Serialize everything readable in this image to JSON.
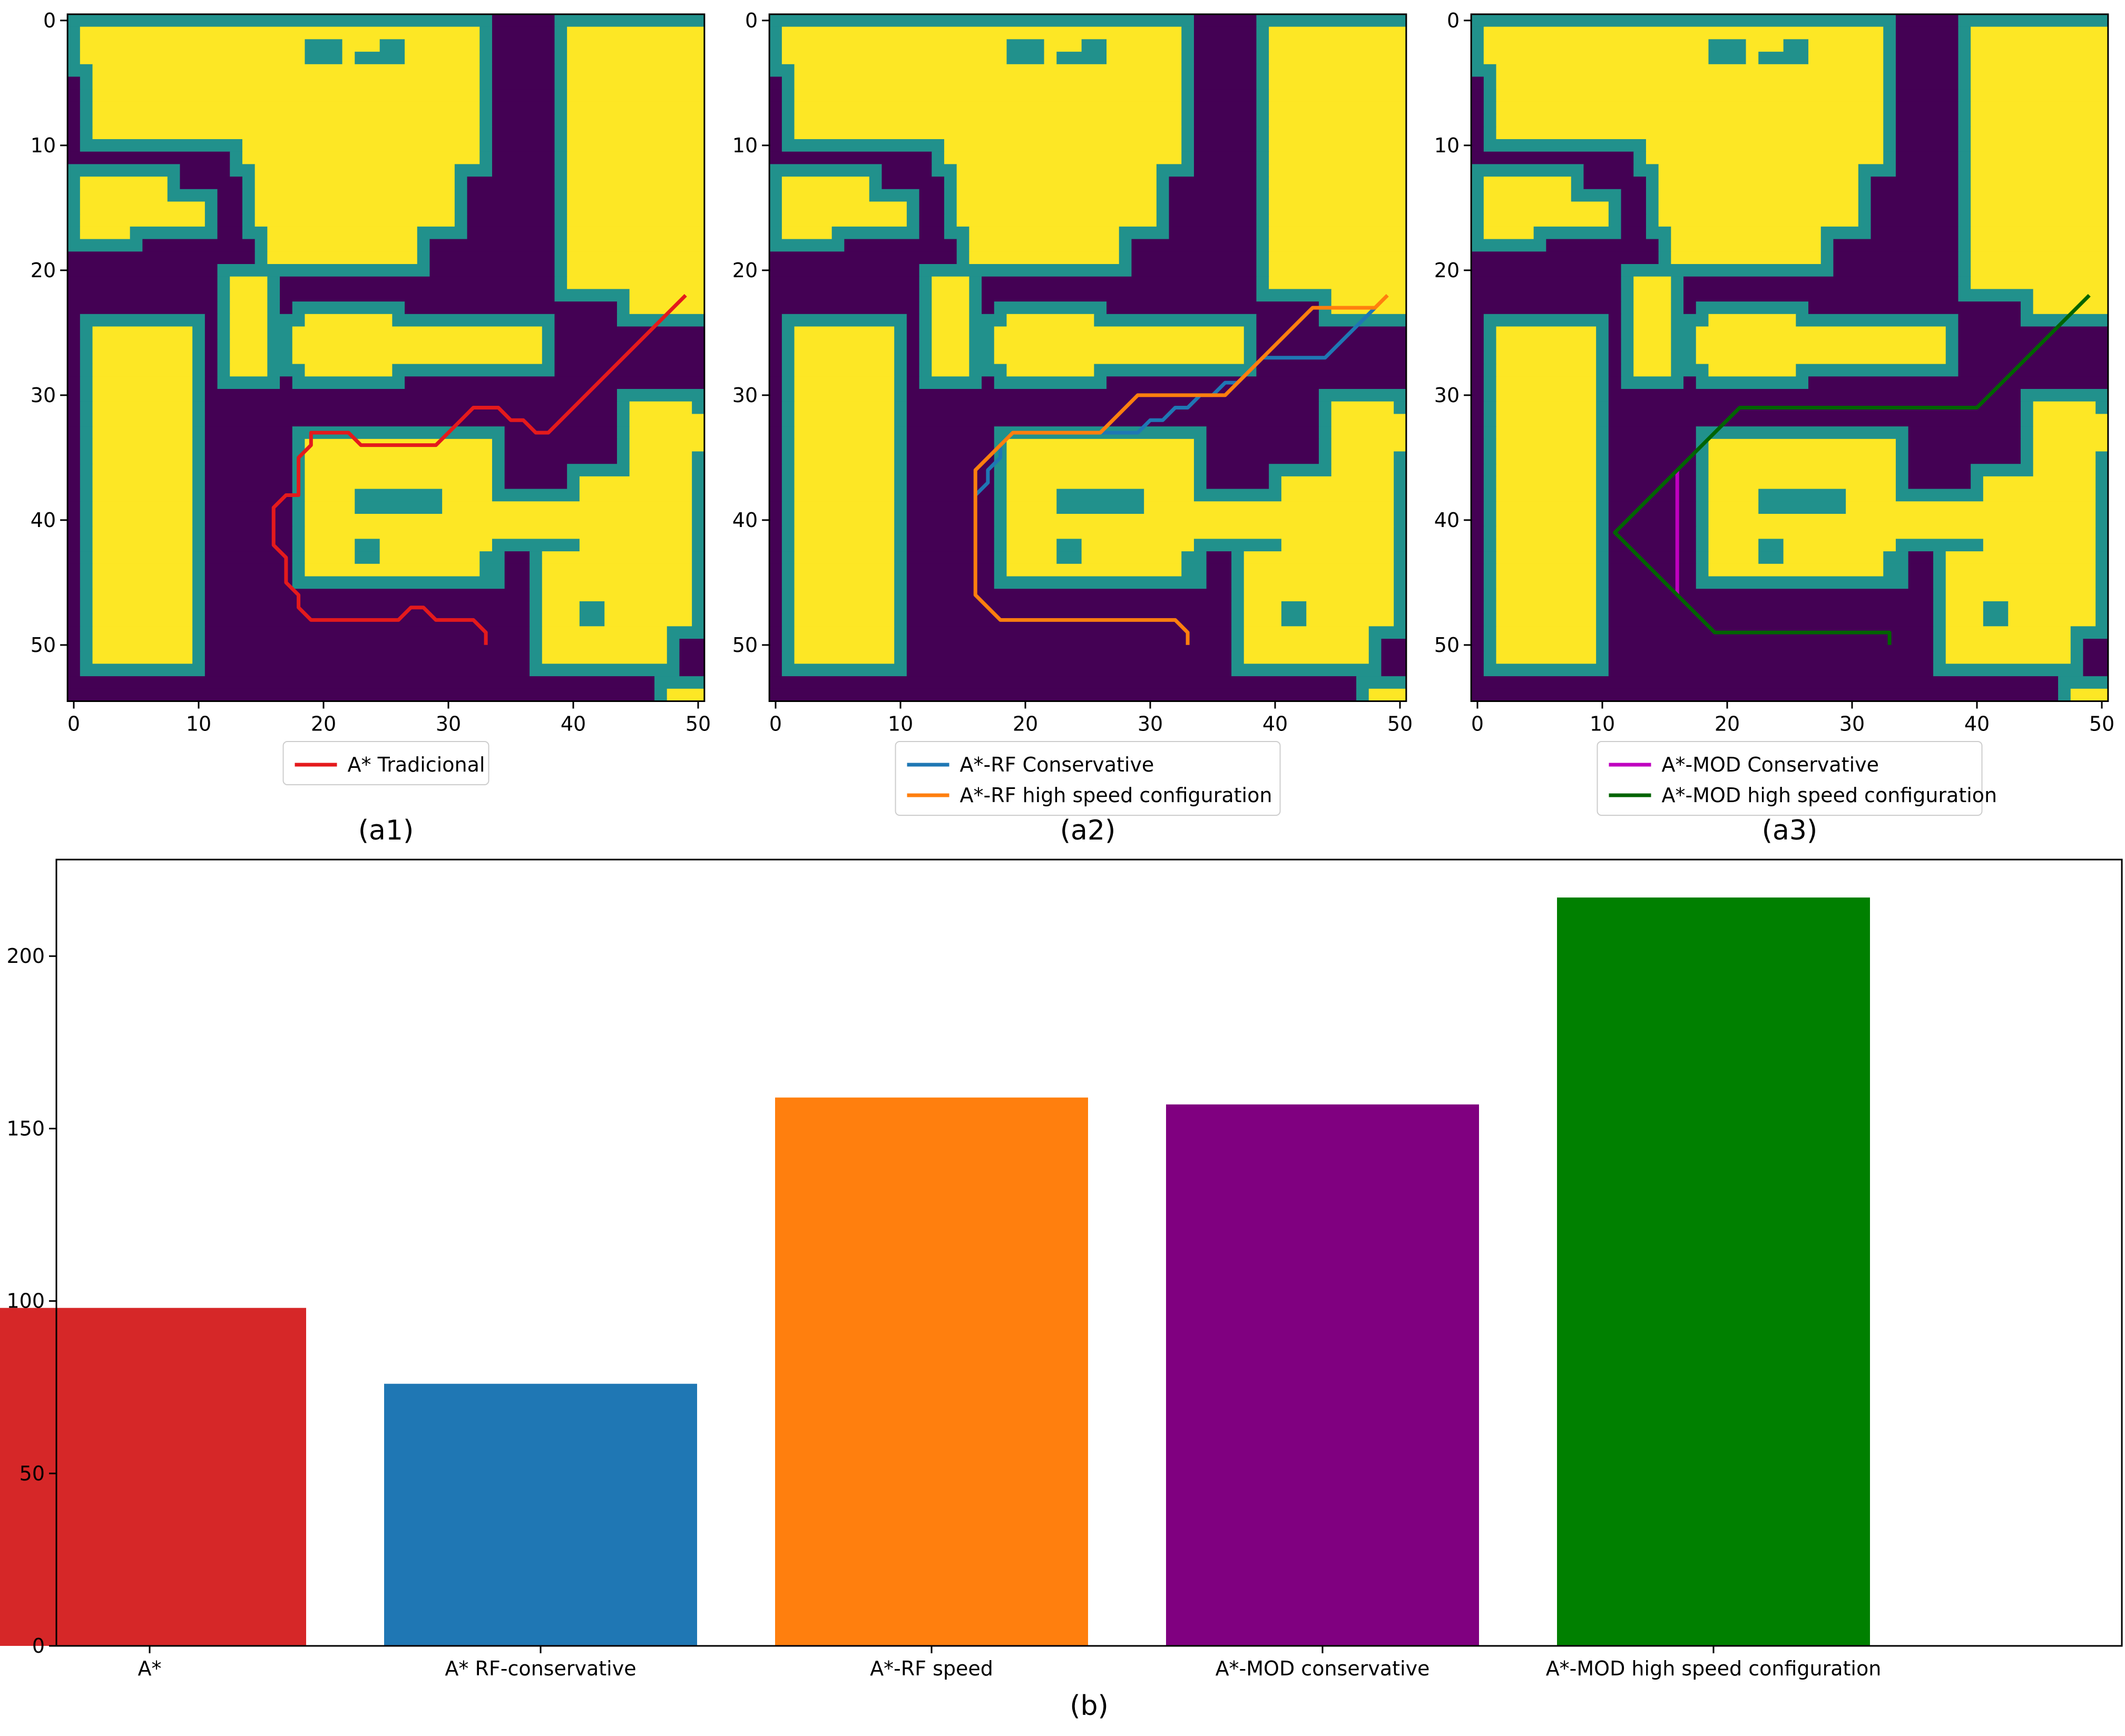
{
  "colors": {
    "free": "#440154",
    "buffer": "#21918c",
    "obstacle": "#fde725",
    "a_star": "#e41a1c",
    "rf_conservative": "#1f77b4",
    "rf_speed": "#ff7f0e",
    "mod_conservative": "#bf00bf",
    "mod_speed": "#006400"
  },
  "panels": [
    {
      "caption": "(a1)",
      "legend": [
        {
          "label": "A* Tradicional",
          "color": "#e41a1c"
        }
      ]
    },
    {
      "caption": "(a2)",
      "legend": [
        {
          "label": "A*-RF Conservative",
          "color": "#1f77b4"
        },
        {
          "label": " A*-RF high speed configuration",
          "color": "#ff7f0e"
        }
      ]
    },
    {
      "caption": "(a3)",
      "legend": [
        {
          "label": "A*-MOD Conservative",
          "color": "#bf00bf"
        },
        {
          "label": "A*-MOD high speed configuration",
          "color": "#006400"
        }
      ]
    }
  ],
  "chart_data": [
    {
      "type": "heatmap",
      "panel": "(a1)",
      "xlim": [
        0,
        50
      ],
      "ylim": [
        55,
        0
      ],
      "xticks": [
        0,
        10,
        20,
        30,
        40,
        50
      ],
      "yticks": [
        0,
        10,
        20,
        30,
        40,
        50
      ],
      "series": [
        {
          "name": "A* Tradicional",
          "color": "#e41a1c",
          "points": [
            [
              33,
              50
            ],
            [
              33,
              49
            ],
            [
              32,
              48
            ],
            [
              29,
              48
            ],
            [
              28,
              47
            ],
            [
              27,
              47
            ],
            [
              26,
              48
            ],
            [
              19,
              48
            ],
            [
              18,
              47
            ],
            [
              18,
              46
            ],
            [
              17,
              45
            ],
            [
              17,
              43
            ],
            [
              16,
              42
            ],
            [
              16,
              39
            ],
            [
              17,
              38
            ],
            [
              18,
              38
            ],
            [
              18,
              35
            ],
            [
              19,
              34
            ],
            [
              19,
              33
            ],
            [
              22,
              33
            ],
            [
              23,
              34
            ],
            [
              29,
              34
            ],
            [
              30,
              33
            ],
            [
              31,
              32
            ],
            [
              32,
              31
            ],
            [
              34,
              31
            ],
            [
              35,
              32
            ],
            [
              36,
              32
            ],
            [
              37,
              33
            ],
            [
              38,
              33
            ],
            [
              49,
              22
            ]
          ]
        }
      ]
    },
    {
      "type": "heatmap",
      "panel": "(a2)",
      "xlim": [
        0,
        50
      ],
      "ylim": [
        55,
        0
      ],
      "xticks": [
        0,
        10,
        20,
        30,
        40,
        50
      ],
      "yticks": [
        0,
        10,
        20,
        30,
        40,
        50
      ],
      "series": [
        {
          "name": "A*-RF Conservative",
          "color": "#1f77b4",
          "points": [
            [
              16,
              38
            ],
            [
              17,
              37
            ],
            [
              17,
              36
            ],
            [
              18,
              35
            ],
            [
              18,
              34
            ],
            [
              19,
              33
            ],
            [
              29,
              33
            ],
            [
              30,
              32
            ],
            [
              31,
              32
            ],
            [
              32,
              31
            ],
            [
              33,
              31
            ],
            [
              34,
              30
            ],
            [
              35,
              30
            ],
            [
              36,
              29
            ],
            [
              37,
              29
            ],
            [
              38,
              28
            ],
            [
              39,
              27
            ],
            [
              44,
              27
            ],
            [
              48,
              23
            ]
          ]
        },
        {
          "name": " A*-RF high speed configuration",
          "color": "#ff7f0e",
          "points": [
            [
              33,
              50
            ],
            [
              33,
              49
            ],
            [
              32,
              48
            ],
            [
              18,
              48
            ],
            [
              16,
              46
            ],
            [
              16,
              36
            ],
            [
              19,
              33
            ],
            [
              26,
              33
            ],
            [
              29,
              30
            ],
            [
              36,
              30
            ],
            [
              43,
              23
            ],
            [
              48,
              23
            ],
            [
              49,
              22
            ]
          ]
        }
      ]
    },
    {
      "type": "heatmap",
      "panel": "(a3)",
      "xlim": [
        0,
        50
      ],
      "ylim": [
        55,
        0
      ],
      "xticks": [
        0,
        10,
        20,
        30,
        40,
        50
      ],
      "yticks": [
        0,
        10,
        20,
        30,
        40,
        50
      ],
      "series": [
        {
          "name": "A*-MOD Conservative",
          "color": "#bf00bf",
          "points": [
            [
              16,
              46
            ],
            [
              16,
              36
            ]
          ]
        },
        {
          "name": "A*-MOD high speed configuration",
          "color": "#006400",
          "points": [
            [
              33,
              50
            ],
            [
              33,
              49
            ],
            [
              19,
              49
            ],
            [
              11,
              41
            ],
            [
              21,
              31
            ],
            [
              40,
              31
            ],
            [
              49,
              22
            ]
          ]
        }
      ]
    },
    {
      "type": "bar",
      "caption": "(b)",
      "categories": [
        "A*",
        "A* RF-conservative",
        "A*-RF speed",
        "A*-MOD conservative",
        "A*-MOD high speed configuration"
      ],
      "values": [
        98,
        76,
        159,
        157,
        217
      ],
      "colors": [
        "#d62728",
        "#1f77b4",
        "#ff7f0e",
        "#800080",
        "#008000"
      ],
      "ylim": [
        0,
        228
      ],
      "yticks": [
        0,
        50,
        100,
        150,
        200
      ]
    }
  ]
}
